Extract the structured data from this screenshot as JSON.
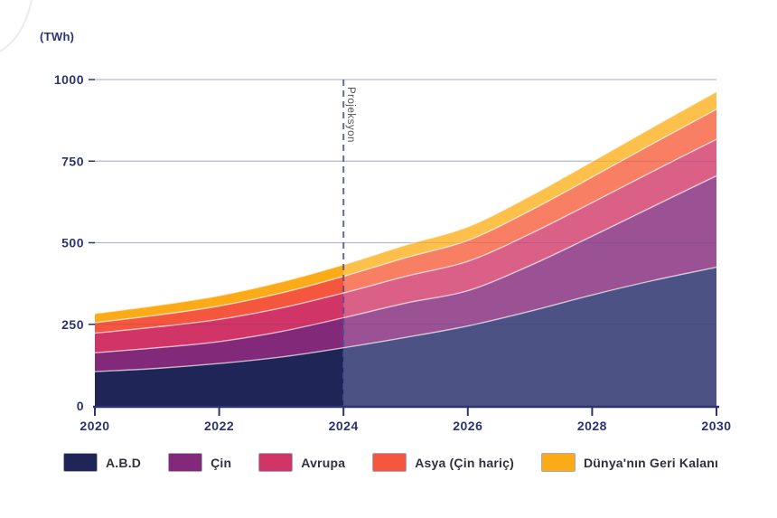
{
  "chart_data": {
    "type": "area",
    "stacked": true,
    "title": "(TWh)",
    "x": [
      2020,
      2021,
      2022,
      2023,
      2024,
      2025,
      2026,
      2027,
      2028,
      2029,
      2030
    ],
    "series": [
      {
        "name": "A.B.D",
        "values": [
          105,
          115,
          130,
          150,
          178,
          210,
          245,
          290,
          340,
          385,
          425
        ],
        "color": "#1f2557",
        "projection_color": "#4d5285"
      },
      {
        "name": "Çin",
        "values": [
          58,
          63,
          67,
          78,
          92,
          105,
          108,
          140,
          180,
          228,
          280
        ],
        "color": "#83297a",
        "projection_color": "#9a5294"
      },
      {
        "name": "Avrupa",
        "values": [
          60,
          64,
          68,
          72,
          76,
          82,
          90,
          97,
          103,
          108,
          112
        ],
        "color": "#d13568",
        "projection_color": "#da6087"
      },
      {
        "name": "Asya (Çin hariç)",
        "values": [
          32,
          36,
          41,
          46,
          51,
          57,
          64,
          71,
          78,
          85,
          92
        ],
        "color": "#f4573e",
        "projection_color": "#f87f63"
      },
      {
        "name": "Dünya'nın Geri Kalanı",
        "values": [
          28,
          30,
          32,
          34,
          36,
          39,
          42,
          45,
          48,
          51,
          54
        ],
        "color": "#fbab18",
        "projection_color": "#fdc04a"
      }
    ],
    "x_ticks": [
      "2020",
      "2022",
      "2024",
      "2026",
      "2028",
      "2030"
    ],
    "y_ticks": [
      0,
      250,
      500,
      750,
      1000
    ],
    "xlim": [
      2020,
      2030
    ],
    "ylim": [
      0,
      1000
    ],
    "grid": true,
    "legend_position": "bottom",
    "projection": {
      "starts_at": 2024,
      "label": "Projeksyon"
    }
  },
  "styles": {
    "axis_color": "#2d3272",
    "grid_color": "#c7c9de",
    "grid_overlay_color": "rgba(45,50,114,0.14)",
    "band_separator_color": "rgba(255,255,255,0.65)",
    "dashed_line_color": "#4a5095",
    "projection_label_color": "#54505c",
    "legend_text_color": "#2f3040",
    "decorative_arc_color": "#ebebf0"
  }
}
